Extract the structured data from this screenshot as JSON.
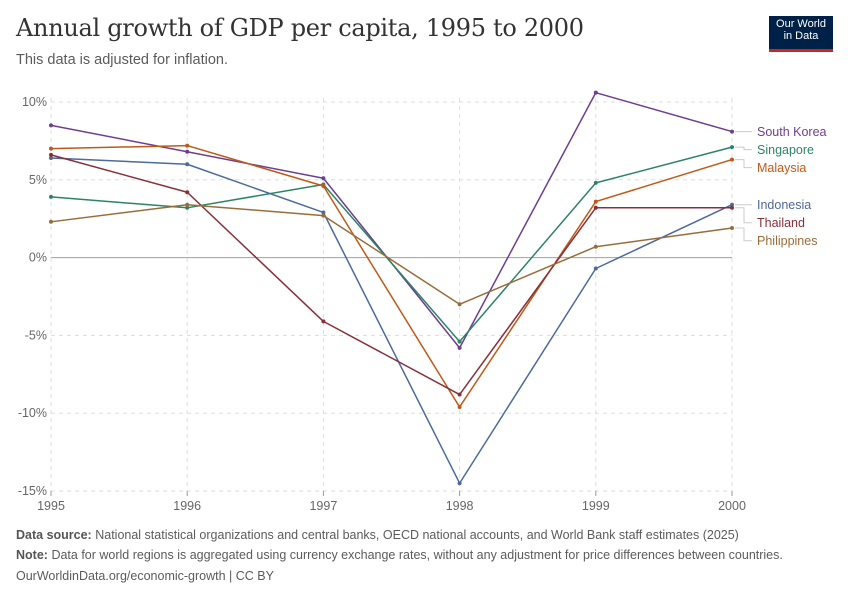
{
  "header": {
    "title": "Annual growth of GDP per capita, 1995 to 2000",
    "subtitle": "This data is adjusted for inflation.",
    "logo_line1": "Our World",
    "logo_line2": "in Data"
  },
  "footer": {
    "source_label": "Data source:",
    "source_text": "National statistical organizations and central banks, OECD national accounts, and World Bank staff estimates (2025)",
    "note_label": "Note:",
    "note_text": "Data for world regions is aggregated using currency exchange rates, without any adjustment for price differences between countries.",
    "url_text": "OurWorldinData.org/economic-growth | CC BY"
  },
  "colors": {
    "logo_bg": "#002147",
    "logo_accent": "#ce261e"
  },
  "chart_data": {
    "type": "line",
    "title": "Annual growth of GDP per capita, 1995 to 2000",
    "subtitle": "This data is adjusted for inflation.",
    "x": [
      1995,
      1996,
      1997,
      1998,
      1999,
      2000
    ],
    "x_tick_labels": [
      "1995",
      "1996",
      "1997",
      "1998",
      "1999",
      "2000"
    ],
    "ylim": [
      -15,
      10
    ],
    "y_ticks": [
      10,
      5,
      0,
      -5,
      -10,
      -15
    ],
    "y_tick_labels": [
      "10%",
      "5%",
      "0%",
      "-5%",
      "-10%",
      "-15%"
    ],
    "grid": true,
    "legend": "right (labels at line ends)",
    "series": [
      {
        "name": "South Korea",
        "color": "#6d3e91",
        "values": [
          8.5,
          6.8,
          5.1,
          -5.8,
          10.6,
          8.1
        ]
      },
      {
        "name": "Singapore",
        "color": "#2c8465",
        "values": [
          3.9,
          3.2,
          4.7,
          -5.4,
          4.8,
          7.1
        ]
      },
      {
        "name": "Malaysia",
        "color": "#c05917",
        "values": [
          7.0,
          7.2,
          4.6,
          -9.6,
          3.6,
          6.3
        ]
      },
      {
        "name": "Indonesia",
        "color": "#4c6a9c",
        "values": [
          6.4,
          6.0,
          2.9,
          -14.5,
          -0.7,
          3.4
        ]
      },
      {
        "name": "Thailand",
        "color": "#883039",
        "values": [
          6.6,
          4.2,
          -4.1,
          -8.8,
          3.2,
          3.2
        ]
      },
      {
        "name": "Philippines",
        "color": "#996d39",
        "values": [
          2.3,
          3.4,
          2.7,
          -3.0,
          0.7,
          1.9
        ]
      }
    ]
  }
}
